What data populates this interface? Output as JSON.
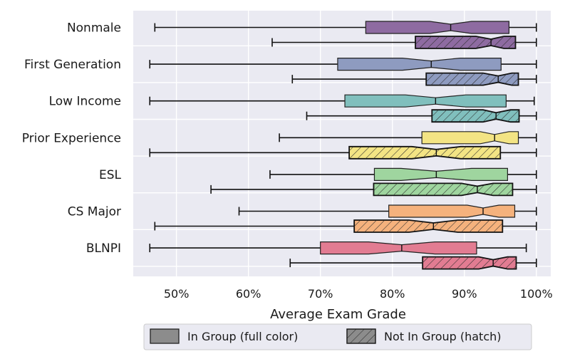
{
  "chart_data": {
    "type": "boxplot",
    "orientation": "horizontal",
    "notched": true,
    "xlabel": "Average Exam Grade",
    "xlim": [
      44,
      102
    ],
    "xticks": [
      50,
      60,
      70,
      80,
      90,
      100
    ],
    "xtick_labels": [
      "50%",
      "60%",
      "70%",
      "80%",
      "90%",
      "100%"
    ],
    "grid": true,
    "legend": {
      "placement": "bottom-center",
      "in_group_label": "In Group (full color)",
      "not_in_group_label": "Not In Group (hatch)"
    },
    "categories": [
      {
        "name": "Nonmale",
        "color": "#8e6ba1",
        "in_group": {
          "min": 47,
          "q1": 76.3,
          "median": 88.1,
          "q3": 96.2,
          "max": 100,
          "notch_lo": 85.2,
          "notch_hi": 91.0
        },
        "not_in_group": {
          "min": 63.3,
          "q1": 83.2,
          "median": 93.7,
          "q3": 97.1,
          "max": 100,
          "notch_lo": 91.6,
          "notch_hi": 95.5
        }
      },
      {
        "name": "First Generation",
        "color": "#8e9bc0",
        "in_group": {
          "min": 46.3,
          "q1": 72.4,
          "median": 85.4,
          "q3": 95.1,
          "max": 100,
          "notch_lo": 81.4,
          "notch_hi": 89.4
        },
        "not_in_group": {
          "min": 66.1,
          "q1": 84.7,
          "median": 94.7,
          "q3": 97.5,
          "max": 100,
          "notch_lo": 92.6,
          "notch_hi": 96.6
        }
      },
      {
        "name": "Low Income",
        "color": "#80bfbd",
        "in_group": {
          "min": 46.3,
          "q1": 73.4,
          "median": 86.0,
          "q3": 95.8,
          "max": 99.7,
          "notch_lo": 81.8,
          "notch_hi": 90.2
        },
        "not_in_group": {
          "min": 68.1,
          "q1": 85.5,
          "median": 94.4,
          "q3": 97.6,
          "max": 100,
          "notch_lo": 92.6,
          "notch_hi": 96.4
        }
      },
      {
        "name": "Prior Experience",
        "color": "#f3e484",
        "in_group": {
          "min": 64.3,
          "q1": 84.1,
          "median": 94.2,
          "q3": 97.5,
          "max": 100,
          "notch_lo": 92.2,
          "notch_hi": 96.2
        },
        "not_in_group": {
          "min": 46.3,
          "q1": 74.0,
          "median": 86.1,
          "q3": 95.0,
          "max": 100,
          "notch_lo": 82.7,
          "notch_hi": 89.5
        }
      },
      {
        "name": "ESL",
        "color": "#9fd59f",
        "in_group": {
          "min": 63.0,
          "q1": 77.5,
          "median": 86.1,
          "q3": 96.0,
          "max": 100,
          "notch_lo": 81.2,
          "notch_hi": 91.0
        },
        "not_in_group": {
          "min": 54.8,
          "q1": 77.4,
          "median": 91.8,
          "q3": 96.7,
          "max": 100,
          "notch_lo": 89.6,
          "notch_hi": 94.0
        }
      },
      {
        "name": "CS Major",
        "color": "#f5b27d",
        "in_group": {
          "min": 58.7,
          "q1": 79.5,
          "median": 92.6,
          "q3": 97.0,
          "max": 100,
          "notch_lo": 90.4,
          "notch_hi": 94.8
        },
        "not_in_group": {
          "min": 47.0,
          "q1": 74.7,
          "median": 85.7,
          "q3": 95.3,
          "max": 100,
          "notch_lo": 82.3,
          "notch_hi": 89.1
        }
      },
      {
        "name": "BLNPI",
        "color": "#e27c92",
        "in_group": {
          "min": 46.3,
          "q1": 70.0,
          "median": 81.3,
          "q3": 91.7,
          "max": 98.6,
          "notch_lo": 76.7,
          "notch_hi": 85.9
        },
        "not_in_group": {
          "min": 65.8,
          "q1": 84.2,
          "median": 94.0,
          "q3": 97.2,
          "max": 100,
          "notch_lo": 92.0,
          "notch_hi": 96.0
        }
      }
    ]
  }
}
